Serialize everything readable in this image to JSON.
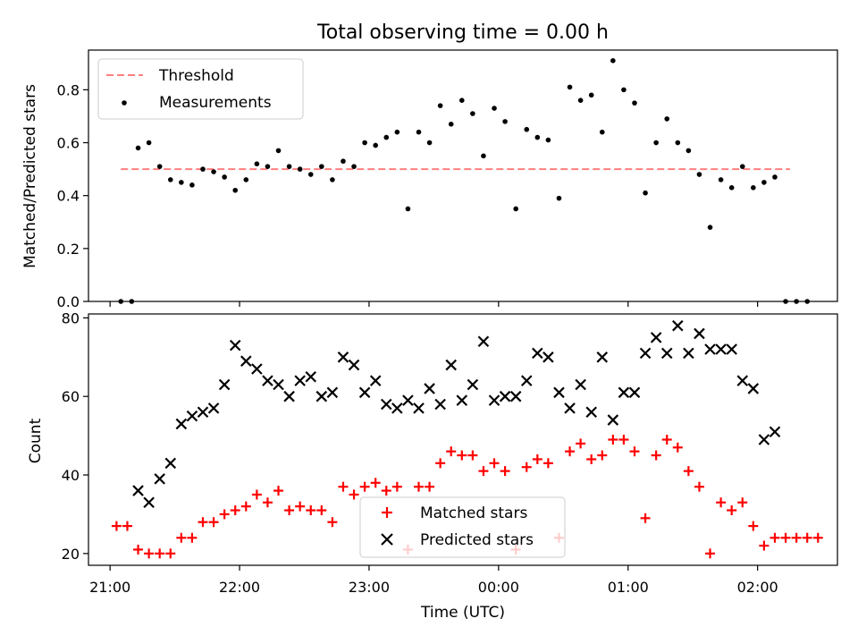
{
  "chart_data": [
    {
      "type": "scatter",
      "title": "Total observing time = 0.00 h",
      "ylabel": "Matched/Predicted stars",
      "ylim": [
        0,
        0.95
      ],
      "xlim": [
        "20:50",
        "02:37"
      ],
      "yticks": [
        "0.0",
        "0.2",
        "0.4",
        "0.6",
        "0.8"
      ],
      "legend": {
        "position": "top-left",
        "entries": [
          "Threshold",
          "Measurements"
        ]
      },
      "threshold": {
        "name": "Threshold",
        "value": 0.5,
        "x_start": "21:05",
        "x_end": "02:15",
        "color": "#ff7f7f"
      },
      "series": [
        {
          "name": "Measurements",
          "marker": "dot",
          "color": "#000000",
          "x": [
            "21:05",
            "21:10",
            "21:13",
            "21:18",
            "21:23",
            "21:28",
            "21:33",
            "21:38",
            "21:43",
            "21:48",
            "21:53",
            "21:58",
            "22:03",
            "22:08",
            "22:13",
            "22:18",
            "22:23",
            "22:28",
            "22:33",
            "22:38",
            "22:43",
            "22:48",
            "22:53",
            "22:58",
            "23:03",
            "23:08",
            "23:13",
            "23:18",
            "23:23",
            "23:28",
            "23:33",
            "23:38",
            "23:43",
            "23:48",
            "23:53",
            "23:58",
            "00:03",
            "00:08",
            "00:13",
            "00:18",
            "00:23",
            "00:28",
            "00:33",
            "00:38",
            "00:43",
            "00:48",
            "00:53",
            "00:58",
            "01:03",
            "01:08",
            "01:13",
            "01:18",
            "01:23",
            "01:28",
            "01:33",
            "01:38",
            "01:43",
            "01:48",
            "01:53",
            "01:58",
            "02:03",
            "02:08",
            "02:13",
            "02:18",
            "02:23"
          ],
          "y": [
            0.0,
            0.0,
            0.58,
            0.6,
            0.51,
            0.46,
            0.45,
            0.44,
            0.5,
            0.49,
            0.47,
            0.42,
            0.46,
            0.52,
            0.51,
            0.57,
            0.51,
            0.5,
            0.48,
            0.51,
            0.46,
            0.53,
            0.51,
            0.6,
            0.59,
            0.62,
            0.64,
            0.35,
            0.64,
            0.6,
            0.74,
            0.67,
            0.76,
            0.71,
            0.55,
            0.73,
            0.68,
            0.35,
            0.65,
            0.62,
            0.61,
            0.39,
            0.81,
            0.76,
            0.78,
            0.64,
            0.91,
            0.8,
            0.75,
            0.41,
            0.6,
            0.69,
            0.6,
            0.57,
            0.48,
            0.28,
            0.46,
            0.43,
            0.51,
            0.43,
            0.45,
            0.47,
            0.0,
            0.0,
            0.0
          ]
        }
      ]
    },
    {
      "type": "scatter",
      "xlabel": "Time (UTC)",
      "ylabel": "Count",
      "ylim": [
        17,
        81
      ],
      "xlim": [
        "20:50",
        "02:37"
      ],
      "xticks": [
        "21:00",
        "22:00",
        "23:00",
        "00:00",
        "01:00",
        "02:00"
      ],
      "yticks": [
        "20",
        "40",
        "60",
        "80"
      ],
      "legend": {
        "position": "lower-center",
        "entries": [
          "Matched stars",
          "Predicted stars"
        ]
      },
      "series": [
        {
          "name": "Matched stars",
          "marker": "plus",
          "color": "#ff0000",
          "x": [
            "21:03",
            "21:08",
            "21:13",
            "21:18",
            "21:23",
            "21:28",
            "21:33",
            "21:38",
            "21:43",
            "21:48",
            "21:53",
            "21:58",
            "22:03",
            "22:08",
            "22:13",
            "22:18",
            "22:23",
            "22:28",
            "22:33",
            "22:38",
            "22:43",
            "22:48",
            "22:53",
            "22:58",
            "23:03",
            "23:08",
            "23:13",
            "23:18",
            "23:23",
            "23:28",
            "23:33",
            "23:38",
            "23:43",
            "23:48",
            "23:53",
            "23:58",
            "00:03",
            "00:08",
            "00:13",
            "00:18",
            "00:23",
            "00:28",
            "00:33",
            "00:38",
            "00:43",
            "00:48",
            "00:53",
            "00:58",
            "01:03",
            "01:08",
            "01:13",
            "01:18",
            "01:23",
            "01:28",
            "01:33",
            "01:38",
            "01:43",
            "01:48",
            "01:53",
            "01:58",
            "02:03",
            "02:08",
            "02:13",
            "02:18",
            "02:23",
            "02:28"
          ],
          "y": [
            27,
            27,
            21,
            20,
            20,
            20,
            24,
            24,
            28,
            28,
            30,
            31,
            32,
            35,
            33,
            36,
            31,
            32,
            31,
            31,
            28,
            37,
            35,
            37,
            38,
            36,
            37,
            21,
            37,
            37,
            43,
            46,
            45,
            45,
            41,
            43,
            41,
            21,
            42,
            44,
            43,
            24,
            46,
            48,
            44,
            45,
            49,
            49,
            46,
            29,
            45,
            49,
            47,
            41,
            37,
            20,
            33,
            31,
            33,
            27,
            22,
            24,
            24,
            24,
            24,
            24
          ]
        },
        {
          "name": "Predicted stars",
          "marker": "x",
          "color": "#000000",
          "x": [
            "21:13",
            "21:18",
            "21:23",
            "21:28",
            "21:33",
            "21:38",
            "21:43",
            "21:48",
            "21:53",
            "21:58",
            "22:03",
            "22:08",
            "22:13",
            "22:18",
            "22:23",
            "22:28",
            "22:33",
            "22:38",
            "22:43",
            "22:48",
            "22:53",
            "22:58",
            "23:03",
            "23:08",
            "23:13",
            "23:18",
            "23:23",
            "23:28",
            "23:33",
            "23:38",
            "23:43",
            "23:48",
            "23:53",
            "23:58",
            "00:03",
            "00:08",
            "00:13",
            "00:18",
            "00:23",
            "00:28",
            "00:33",
            "00:38",
            "00:43",
            "00:48",
            "00:53",
            "00:58",
            "01:03",
            "01:08",
            "01:13",
            "01:18",
            "01:23",
            "01:28",
            "01:33",
            "01:38",
            "01:43",
            "01:48",
            "01:53",
            "01:58",
            "02:03",
            "02:08",
            "02:13"
          ],
          "y": [
            36,
            33,
            39,
            43,
            53,
            55,
            56,
            57,
            63,
            73,
            69,
            67,
            64,
            63,
            60,
            64,
            65,
            60,
            61,
            70,
            68,
            61,
            64,
            58,
            57,
            59,
            57,
            62,
            58,
            68,
            59,
            63,
            74,
            59,
            60,
            60,
            64,
            71,
            70,
            61,
            57,
            63,
            56,
            70,
            54,
            61,
            61,
            71,
            75,
            71,
            78,
            71,
            76,
            72,
            72,
            72,
            64,
            62,
            49,
            51,
            null
          ]
        }
      ]
    }
  ]
}
